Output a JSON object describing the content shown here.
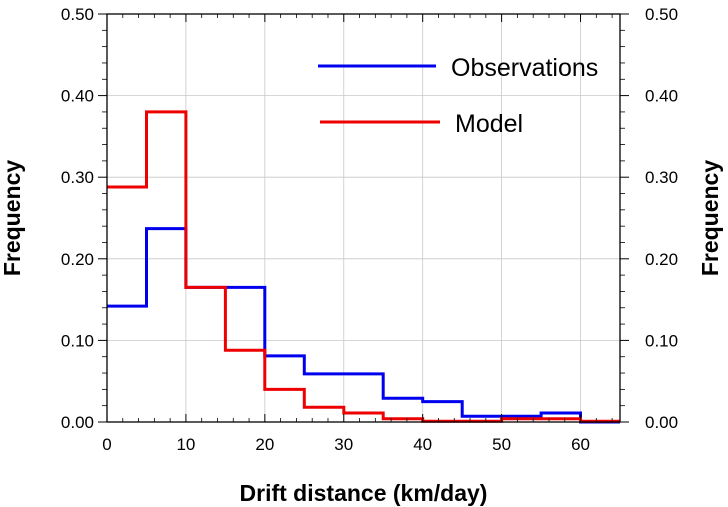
{
  "chart_data": {
    "type": "line",
    "style": "step-histogram",
    "title": "",
    "xlabel": "Drift distance (km/day)",
    "ylabel": "Frequency",
    "ylabel_right": "Frequency",
    "xlim": [
      0,
      65
    ],
    "ylim": [
      0,
      0.5
    ],
    "x_ticks": [
      0,
      10,
      20,
      30,
      40,
      50,
      60
    ],
    "x_tick_labels": [
      "0",
      "10",
      "20",
      "30",
      "40",
      "50",
      "60"
    ],
    "y_ticks": [
      0,
      0.1,
      0.2,
      0.3,
      0.4,
      0.5
    ],
    "y_tick_labels": [
      "0.00",
      "0.10",
      "0.20",
      "0.30",
      "0.40",
      "0.50"
    ],
    "grid": true,
    "legend_position": "top-right",
    "bin_edges": [
      0,
      5,
      10,
      15,
      20,
      25,
      30,
      35,
      40,
      45,
      50,
      55,
      60,
      65
    ],
    "series": [
      {
        "name": "Observations",
        "color": "#0000ee",
        "values": [
          0.142,
          0.237,
          0.165,
          0.165,
          0.081,
          0.059,
          0.059,
          0.029,
          0.025,
          0.007,
          0.007,
          0.011,
          0.0
        ]
      },
      {
        "name": "Model",
        "color": "#ee0000",
        "values": [
          0.288,
          0.38,
          0.165,
          0.088,
          0.04,
          0.018,
          0.011,
          0.004,
          0.001,
          0.001,
          0.004,
          0.004,
          0.001
        ]
      }
    ]
  }
}
